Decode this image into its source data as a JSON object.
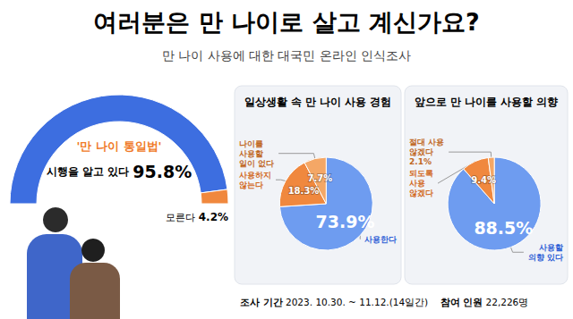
{
  "header": {
    "title": "여러분은 만 나이로 살고 계신가요?",
    "highlight": "만 나이",
    "subtitle": "만 나이 사용에 대한 대국민 온라인 인식조사"
  },
  "chart_data": [
    {
      "type": "semidonut",
      "categories": [
        "'만 나이 통일법' 시행을 알고 있다",
        "모른다"
      ],
      "values": [
        95.8,
        4.2
      ],
      "value_labels": [
        "95.8%",
        "4.2%"
      ],
      "colors": [
        "#3d6ee0",
        "#f0883e"
      ],
      "data_labels": true
    },
    {
      "type": "pie",
      "title": "일상생활 속 만 나이 사용 경험",
      "categories": [
        "사용한다",
        "사용하지 않는다",
        "나이를 사용할 일이 없다"
      ],
      "values": [
        73.9,
        18.3,
        7.7
      ],
      "value_labels": [
        "73.9%",
        "18.3%",
        "7.7%"
      ],
      "colors": [
        "#6e9cf0",
        "#f0883e",
        "#f4a766"
      ],
      "data_labels": true
    },
    {
      "type": "pie",
      "title": "앞으로 만 나이를 사용할 의향",
      "categories": [
        "사용할 의향 있다",
        "되도록 사용 않겠다",
        "절대 사용 않겠다"
      ],
      "values": [
        88.5,
        9.4,
        2.1
      ],
      "value_labels": [
        "88.5%",
        "9.4%",
        "2.1%"
      ],
      "colors": [
        "#6e9cf0",
        "#f0883e",
        "#f4a766"
      ],
      "data_labels": true
    }
  ],
  "footer": {
    "items": [
      {
        "label": "조사 기간",
        "value": "2023. 10.30. ~ 11.12.(14일간)"
      },
      {
        "label": "참여 인원",
        "value": "22,226명"
      }
    ]
  }
}
